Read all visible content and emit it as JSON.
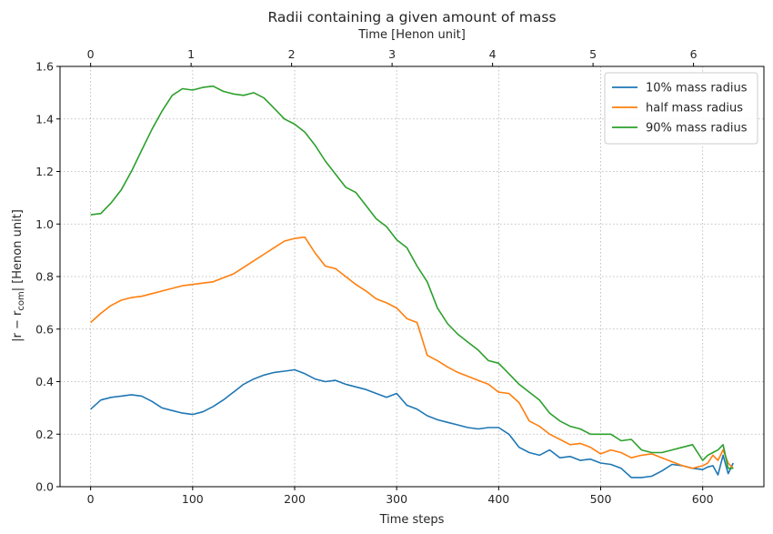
{
  "chart_data": {
    "type": "line",
    "title": "Radii containing a given amount of mass",
    "xlabel": "Time steps",
    "ylabel_prefix": "|r − r",
    "ylabel_sub": "com",
    "ylabel_suffix": "| [Henon unit]",
    "top_xlabel": "Time [Henon unit]",
    "xlim": [
      -30,
      660
    ],
    "ylim": [
      0,
      1.6
    ],
    "xticks": [
      0,
      100,
      200,
      300,
      400,
      500,
      600
    ],
    "yticks": [
      0.0,
      0.2,
      0.4,
      0.6,
      0.8,
      1.0,
      1.2,
      1.4,
      1.6
    ],
    "ytick_labels": [
      "0.0",
      "0.2",
      "0.4",
      "0.6",
      "0.8",
      "1.0",
      "1.2",
      "1.4",
      "1.6"
    ],
    "top_ticks_steps_per_unit": 98.5,
    "top_ticks": [
      0,
      1,
      2,
      3,
      4,
      5,
      6
    ],
    "grid": true,
    "legend_position": "top-right",
    "series": [
      {
        "name": "10% mass radius",
        "color": "#1f77b4",
        "x": [
          0,
          10,
          20,
          30,
          40,
          50,
          60,
          70,
          80,
          90,
          100,
          110,
          120,
          130,
          140,
          150,
          160,
          170,
          180,
          190,
          200,
          210,
          220,
          230,
          240,
          250,
          260,
          270,
          280,
          290,
          300,
          310,
          320,
          330,
          340,
          350,
          360,
          370,
          380,
          390,
          400,
          410,
          420,
          430,
          440,
          450,
          460,
          470,
          480,
          490,
          500,
          510,
          520,
          530,
          540,
          550,
          560,
          570,
          580,
          590,
          600,
          605,
          610,
          615,
          620,
          625,
          630
        ],
        "y": [
          0.295,
          0.33,
          0.34,
          0.345,
          0.35,
          0.345,
          0.325,
          0.3,
          0.29,
          0.28,
          0.275,
          0.285,
          0.305,
          0.33,
          0.36,
          0.39,
          0.41,
          0.425,
          0.435,
          0.44,
          0.445,
          0.43,
          0.41,
          0.4,
          0.405,
          0.39,
          0.38,
          0.37,
          0.355,
          0.34,
          0.355,
          0.31,
          0.295,
          0.27,
          0.255,
          0.245,
          0.235,
          0.225,
          0.22,
          0.225,
          0.225,
          0.2,
          0.15,
          0.13,
          0.12,
          0.14,
          0.11,
          0.115,
          0.1,
          0.105,
          0.09,
          0.085,
          0.07,
          0.035,
          0.035,
          0.04,
          0.06,
          0.085,
          0.08,
          0.07,
          0.065,
          0.075,
          0.08,
          0.045,
          0.12,
          0.05,
          0.09
        ]
      },
      {
        "name": "half mass radius",
        "color": "#ff7f0e",
        "x": [
          0,
          10,
          20,
          30,
          40,
          50,
          60,
          70,
          80,
          90,
          100,
          110,
          120,
          130,
          140,
          150,
          160,
          170,
          180,
          190,
          200,
          210,
          220,
          230,
          240,
          250,
          260,
          270,
          280,
          290,
          300,
          310,
          320,
          330,
          340,
          350,
          360,
          370,
          380,
          390,
          400,
          410,
          420,
          430,
          440,
          450,
          460,
          470,
          480,
          490,
          500,
          510,
          520,
          530,
          540,
          550,
          560,
          570,
          580,
          590,
          600,
          605,
          610,
          615,
          620,
          625,
          630
        ],
        "y": [
          0.625,
          0.66,
          0.69,
          0.71,
          0.72,
          0.725,
          0.735,
          0.745,
          0.755,
          0.765,
          0.77,
          0.775,
          0.78,
          0.795,
          0.81,
          0.835,
          0.86,
          0.885,
          0.91,
          0.935,
          0.945,
          0.95,
          0.89,
          0.84,
          0.83,
          0.8,
          0.77,
          0.745,
          0.715,
          0.7,
          0.68,
          0.64,
          0.625,
          0.5,
          0.48,
          0.455,
          0.435,
          0.42,
          0.405,
          0.39,
          0.36,
          0.355,
          0.32,
          0.25,
          0.23,
          0.2,
          0.18,
          0.16,
          0.165,
          0.15,
          0.125,
          0.14,
          0.13,
          0.11,
          0.12,
          0.125,
          0.11,
          0.095,
          0.08,
          0.07,
          0.08,
          0.09,
          0.12,
          0.1,
          0.14,
          0.09,
          0.07
        ]
      },
      {
        "name": "90% mass radius",
        "color": "#2ca02c",
        "x": [
          0,
          10,
          20,
          30,
          40,
          50,
          60,
          70,
          80,
          90,
          100,
          110,
          120,
          130,
          140,
          150,
          160,
          170,
          180,
          190,
          200,
          210,
          220,
          230,
          240,
          250,
          260,
          270,
          280,
          290,
          300,
          310,
          320,
          330,
          340,
          350,
          360,
          370,
          380,
          390,
          400,
          410,
          420,
          430,
          440,
          450,
          460,
          470,
          480,
          490,
          500,
          510,
          520,
          530,
          540,
          550,
          560,
          570,
          580,
          590,
          600,
          605,
          610,
          615,
          620,
          625,
          630
        ],
        "y": [
          1.035,
          1.04,
          1.08,
          1.13,
          1.2,
          1.28,
          1.36,
          1.43,
          1.49,
          1.515,
          1.51,
          1.52,
          1.525,
          1.505,
          1.495,
          1.49,
          1.5,
          1.48,
          1.44,
          1.4,
          1.38,
          1.35,
          1.3,
          1.24,
          1.19,
          1.14,
          1.12,
          1.07,
          1.02,
          0.99,
          0.94,
          0.91,
          0.84,
          0.78,
          0.68,
          0.62,
          0.58,
          0.55,
          0.52,
          0.48,
          0.47,
          0.43,
          0.39,
          0.36,
          0.33,
          0.28,
          0.25,
          0.23,
          0.22,
          0.2,
          0.2,
          0.2,
          0.175,
          0.18,
          0.14,
          0.13,
          0.13,
          0.14,
          0.15,
          0.16,
          0.1,
          0.12,
          0.13,
          0.14,
          0.16,
          0.07,
          0.07
        ]
      }
    ]
  }
}
